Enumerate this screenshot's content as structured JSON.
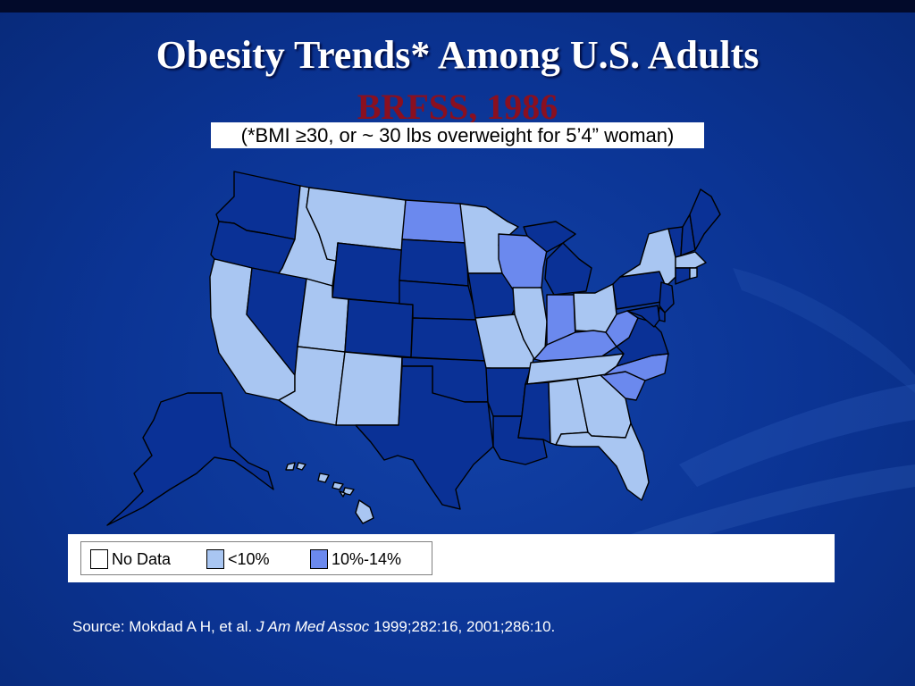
{
  "slide": {
    "title": "Obesity Trends* Among U.S. Adults",
    "subtitle": "BRFSS, 1986",
    "footnote": "(*BMI ≥30, or ~ 30 lbs overweight for 5’4” woman)"
  },
  "map": {
    "categories": {
      "nodata": {
        "label": "No Data",
        "color": "#ffffff"
      },
      "lt10": {
        "label": "<10%",
        "color": "#a9c6f2"
      },
      "p10_14": {
        "label": "10%-14%",
        "color": "#6b89ee"
      },
      "grey": {
        "color": "#0a3196"
      }
    },
    "states": {
      "WA": "nodata",
      "OR": "nodata",
      "CA": "lt10",
      "NV": "nodata",
      "ID": "lt10",
      "MT": "lt10",
      "WY": "nodata",
      "UT": "lt10",
      "AZ": "lt10",
      "CO": "nodata",
      "NM": "lt10",
      "ND": "p10_14",
      "SD": "nodata",
      "NE": "nodata",
      "KS": "nodata",
      "OK": "nodata",
      "TX": "nodata",
      "MN": "lt10",
      "IA": "nodata",
      "MO": "lt10",
      "AR": "nodata",
      "LA": "nodata",
      "WI": "p10_14",
      "IL": "lt10",
      "MI": "nodata",
      "IN": "p10_14",
      "OH": "lt10",
      "KY": "p10_14",
      "TN": "lt10",
      "MS": "nodata",
      "AL": "lt10",
      "GA": "lt10",
      "FL": "lt10",
      "SC": "p10_14",
      "NC": "p10_14",
      "WV": "p10_14",
      "VA": "nodata",
      "PA": "nodata",
      "NY": "lt10",
      "ME": "nodata",
      "NH": "nodata",
      "VT": "nodata",
      "MA": "lt10",
      "CT": "nodata",
      "RI": "lt10",
      "NJ": "nodata",
      "DE": "nodata",
      "MD": "nodata",
      "AK": "nodata",
      "HI": "lt10"
    }
  },
  "legend": {
    "items": [
      {
        "label": "No Data",
        "color": "#ffffff"
      },
      {
        "label": "<10%",
        "color": "#a9c6f2"
      },
      {
        "label": "10%-14%",
        "color": "#6b89ee"
      }
    ]
  },
  "source": {
    "prefix": "Source: Mokdad A H, et al. ",
    "journal": "J Am Med Assoc",
    "suffix": " 1999;282:16, 2001;286:10."
  }
}
